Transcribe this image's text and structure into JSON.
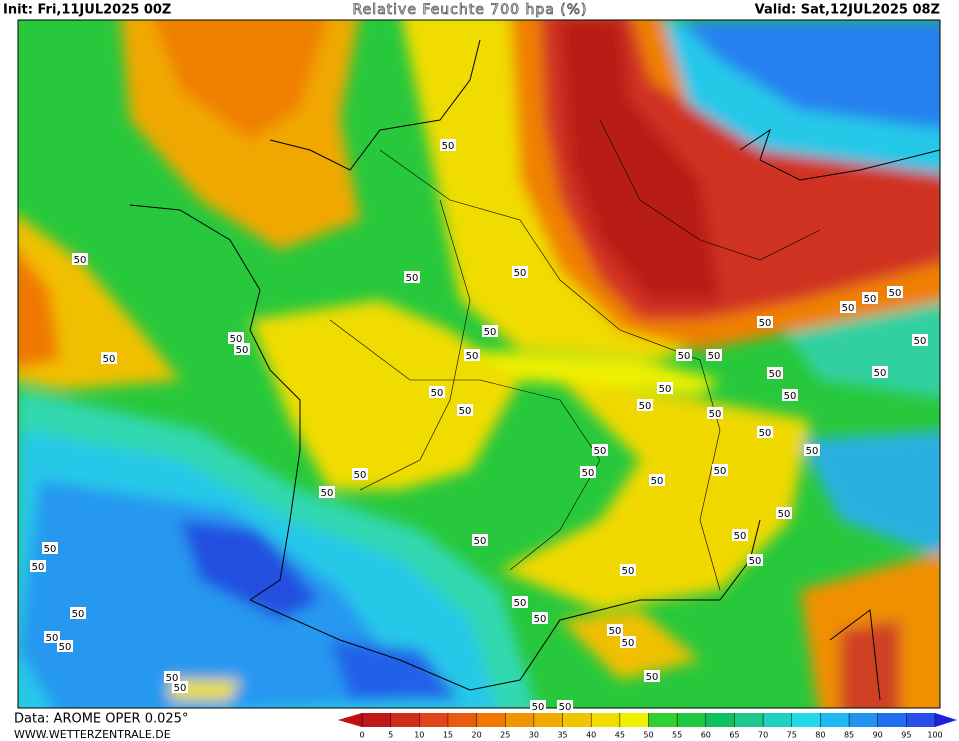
{
  "header": {
    "init": "Init: Fri,11JUL2025 00Z",
    "title": "Relative Feuchte 700 hpa (%)",
    "valid": "Valid: Sat,12JUL2025 08Z"
  },
  "footer": {
    "data_source": "Data: AROME OPER 0.025°",
    "website": "WWW.WETTERZENTRALE.DE"
  },
  "contour_labels": [
    "50",
    "50",
    "50",
    "50",
    "50",
    "50",
    "50",
    "50",
    "50",
    "50",
    "50",
    "50",
    "50",
    "50",
    "50",
    "50",
    "50",
    "50",
    "50",
    "50",
    "50",
    "50",
    "50",
    "50",
    "50",
    "50",
    "50",
    "50",
    "50",
    "50",
    "50",
    "50",
    "50",
    "50",
    "50",
    "50",
    "50",
    "50",
    "50",
    "50",
    "50",
    "50",
    "50",
    "50",
    "50",
    "50",
    "50",
    "50",
    "50",
    "50",
    "50"
  ],
  "colorbar": {
    "ticks": [
      0,
      5,
      10,
      15,
      20,
      25,
      30,
      35,
      40,
      45,
      50,
      55,
      60,
      65,
      70,
      75,
      80,
      85,
      90,
      95,
      100
    ],
    "colors": [
      "#c01818",
      "#d02c1c",
      "#e04418",
      "#e85c10",
      "#f07800",
      "#f09400",
      "#f0ac00",
      "#f0c400",
      "#f0dc00",
      "#f0f000",
      "#30d030",
      "#20c840",
      "#10c060",
      "#20c890",
      "#20d0c0",
      "#20d8e8",
      "#20b8f0",
      "#2094f0",
      "#2070f0",
      "#2850e8"
    ],
    "under_color": "#c01010",
    "over_color": "#2020e0"
  }
}
